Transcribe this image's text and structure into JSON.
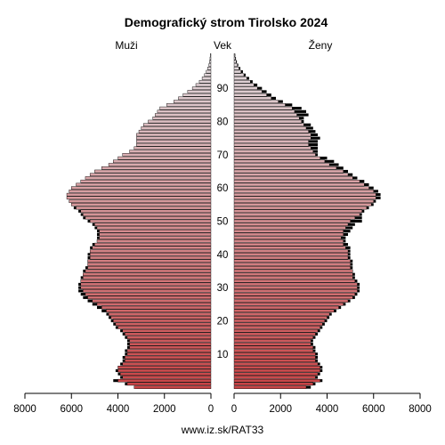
{
  "chart_data": {
    "type": "bar",
    "orientation": "horizontal",
    "title": "Demografický strom Tirolsko 2024",
    "left_label": "Muži",
    "center_label": "Vek",
    "right_label": "Ženy",
    "footer": "www.iz.sk/RAT33",
    "xlim": [
      0,
      8000
    ],
    "x_ticks": [
      8000,
      6000,
      4000,
      2000,
      0
    ],
    "x_tick_labels": [
      "8000",
      "6000",
      "4000",
      "2000",
      "0"
    ],
    "x_ticks_right": [
      0,
      2000,
      4000,
      6000,
      8000
    ],
    "x_tick_labels_right": [
      "0",
      "2000",
      "4000",
      "6000",
      "8000"
    ],
    "age_ticks": [
      10,
      20,
      30,
      40,
      50,
      60,
      70,
      80,
      90
    ],
    "age_tick_labels": [
      "10",
      "20",
      "30",
      "40",
      "50",
      "60",
      "70",
      "80",
      "90"
    ],
    "ages_range": [
      0,
      100
    ],
    "series": [
      {
        "name": "Muži",
        "values": [
          3300,
          3600,
          4000,
          3800,
          3900,
          4000,
          4000,
          3800,
          3700,
          3700,
          3600,
          3600,
          3500,
          3500,
          3500,
          3600,
          3700,
          3800,
          4000,
          4100,
          4200,
          4300,
          4400,
          4500,
          4700,
          4900,
          5100,
          5300,
          5400,
          5500,
          5600,
          5600,
          5600,
          5500,
          5500,
          5400,
          5300,
          5300,
          5300,
          5200,
          5200,
          5200,
          5100,
          5000,
          4900,
          4800,
          4800,
          4800,
          4900,
          5000,
          5200,
          5400,
          5500,
          5600,
          5800,
          6000,
          6100,
          6200,
          6200,
          6100,
          6000,
          5800,
          5600,
          5400,
          5200,
          5000,
          4700,
          4400,
          4200,
          4000,
          3800,
          3500,
          3300,
          3200,
          3200,
          3200,
          3200,
          3100,
          3000,
          2900,
          2700,
          2500,
          2400,
          2300,
          2200,
          1900,
          1600,
          1400,
          1200,
          1000,
          800,
          650,
          500,
          380,
          280,
          200,
          140,
          90,
          60,
          40,
          30
        ],
        "color": "#c94446"
      },
      {
        "name": "Ženy",
        "values": [
          3100,
          3400,
          3700,
          3500,
          3600,
          3700,
          3700,
          3600,
          3500,
          3500,
          3500,
          3400,
          3400,
          3300,
          3300,
          3400,
          3500,
          3600,
          3700,
          3800,
          3900,
          4000,
          4100,
          4300,
          4500,
          4700,
          4900,
          5100,
          5200,
          5300,
          5300,
          5300,
          5200,
          5100,
          5100,
          5100,
          5000,
          5000,
          5000,
          4900,
          4900,
          4900,
          4800,
          4700,
          4700,
          4600,
          4700,
          4700,
          4800,
          4900,
          5000,
          5200,
          5400,
          5500,
          5700,
          5900,
          6000,
          6100,
          6100,
          6000,
          5800,
          5600,
          5400,
          5100,
          4900,
          4700,
          4400,
          4100,
          3900,
          3700,
          3500,
          3400,
          3300,
          3200,
          3200,
          3300,
          3300,
          3200,
          3100,
          3000,
          2900,
          2800,
          2700,
          2600,
          2500,
          2200,
          1900,
          1600,
          1400,
          1200,
          1000,
          850,
          700,
          550,
          420,
          300,
          210,
          140,
          90,
          55,
          35
        ],
        "color": "#c94446"
      }
    ],
    "extra_series": [
      {
        "name": "Muži",
        "values": [
          3200,
          3700,
          4200,
          3900,
          4000,
          4100,
          4000,
          3900,
          3800,
          3800,
          3700,
          3700,
          3600,
          3600,
          3600,
          3700,
          3800,
          3900,
          4100,
          4200,
          4300,
          4400,
          4500,
          4700,
          4900,
          5100,
          5300,
          5500,
          5600,
          5700,
          5700,
          5700,
          5600,
          5600,
          5500,
          5500,
          5400,
          5300,
          5300,
          5300,
          5300,
          5200,
          5200,
          5100,
          4900,
          4900,
          4900,
          4900,
          5000,
          5100,
          5300,
          5500,
          5600,
          5700,
          5900,
          6000,
          6100,
          6200,
          6200,
          6100,
          6000,
          5800,
          5600,
          5400,
          5200,
          5000,
          4700,
          4400,
          4200,
          4000,
          3800,
          3500,
          3300,
          3200,
          3200,
          3200,
          3200,
          3100,
          3000,
          2900,
          2700,
          2500,
          2400,
          2300,
          2200,
          1900,
          1600,
          1400,
          1200,
          1000,
          800,
          650,
          500,
          380,
          280,
          200,
          140,
          90,
          60,
          40,
          30
        ],
        "color": "#000000"
      },
      {
        "name": "Ženy",
        "values": [
          3300,
          3500,
          3800,
          3600,
          3700,
          3800,
          3800,
          3700,
          3600,
          3600,
          3600,
          3500,
          3500,
          3400,
          3400,
          3500,
          3600,
          3700,
          3800,
          3900,
          4000,
          4100,
          4200,
          4400,
          4600,
          4800,
          5000,
          5200,
          5300,
          5400,
          5400,
          5400,
          5300,
          5200,
          5200,
          5100,
          5100,
          5100,
          5100,
          5000,
          5000,
          5000,
          5000,
          4900,
          4800,
          4800,
          4900,
          5000,
          5100,
          5200,
          5500,
          5500,
          5500,
          5600,
          5800,
          6000,
          6100,
          6300,
          6300,
          6200,
          6000,
          5800,
          5600,
          5300,
          5100,
          4900,
          4700,
          4500,
          4300,
          4000,
          3600,
          3600,
          3600,
          3600,
          3600,
          3700,
          3600,
          3500,
          3400,
          3300,
          3000,
          3000,
          3200,
          3100,
          2900,
          2500,
          2100,
          1800,
          1600,
          1400,
          1200,
          1000,
          800,
          650,
          500,
          380,
          270,
          180,
          120,
          80,
          50
        ],
        "color": "#000000"
      }
    ]
  }
}
